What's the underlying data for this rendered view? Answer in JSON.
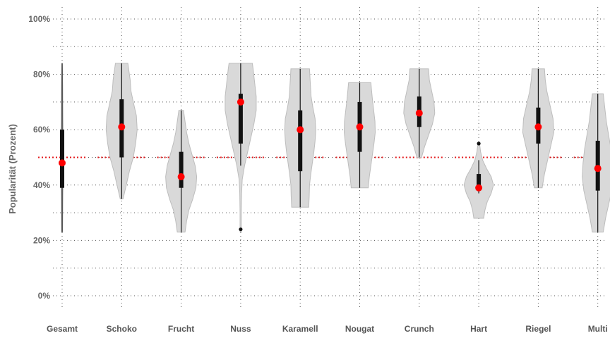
{
  "chart_data": {
    "type": "violin",
    "title": "",
    "xlabel": "",
    "ylabel": "Popularität (Prozent)",
    "ylim": [
      0,
      100
    ],
    "y_ticks": [
      0,
      20,
      40,
      60,
      80,
      100
    ],
    "y_tick_labels": [
      "0%",
      "20%",
      "40%",
      "60%",
      "80%",
      "100%"
    ],
    "grid": "dotted",
    "reference_line": {
      "y": 50,
      "color": "#e31a1c",
      "style": "dotted"
    },
    "colors": {
      "violin_fill": "#d9d9d9",
      "violin_stroke": "#bdbdbd",
      "box": "#111111",
      "median": "#ff0000",
      "reference": "#e31a1c"
    },
    "categories": [
      "Gesamt",
      "Schoko",
      "Frucht",
      "Nuss",
      "Karamell",
      "Nougat",
      "Crunch",
      "Hart",
      "Riegel",
      "Multi"
    ],
    "series": [
      {
        "category": "Gesamt",
        "min": 23,
        "q1": 39,
        "median": 48,
        "q3": 60,
        "max": 84,
        "density": [
          [
            23,
            0.03
          ],
          [
            28,
            0.04
          ],
          [
            34,
            0.05
          ],
          [
            40,
            0.07
          ],
          [
            46,
            0.09
          ],
          [
            52,
            0.1
          ],
          [
            58,
            0.08
          ],
          [
            64,
            0.06
          ],
          [
            70,
            0.05
          ],
          [
            76,
            0.04
          ],
          [
            82,
            0.02
          ],
          [
            84,
            0.01
          ]
        ]
      },
      {
        "category": "Schoko",
        "min": 35,
        "q1": 50,
        "median": 61,
        "q3": 71,
        "max": 84,
        "density": [
          [
            35,
            0.09
          ],
          [
            40,
            0.3
          ],
          [
            45,
            0.5
          ],
          [
            50,
            0.75
          ],
          [
            55,
            0.9
          ],
          [
            60,
            1.0
          ],
          [
            65,
            0.95
          ],
          [
            70,
            0.75
          ],
          [
            74,
            0.6
          ],
          [
            78,
            0.55
          ],
          [
            82,
            0.45
          ],
          [
            84,
            0.4
          ]
        ]
      },
      {
        "category": "Frucht",
        "min": 23,
        "q1": 39,
        "median": 43,
        "q3": 52,
        "max": 67,
        "density": [
          [
            23,
            0.25
          ],
          [
            27,
            0.35
          ],
          [
            31,
            0.5
          ],
          [
            35,
            0.75
          ],
          [
            39,
            0.95
          ],
          [
            43,
            1.0
          ],
          [
            47,
            0.9
          ],
          [
            51,
            0.7
          ],
          [
            55,
            0.5
          ],
          [
            59,
            0.35
          ],
          [
            63,
            0.25
          ],
          [
            67,
            0.15
          ]
        ]
      },
      {
        "category": "Nuss",
        "min": 47,
        "q1": 55,
        "median": 70,
        "q3": 73,
        "max": 84,
        "density": [
          [
            23,
            0.04
          ],
          [
            30,
            0.04
          ],
          [
            37,
            0.06
          ],
          [
            42,
            0.1
          ],
          [
            47,
            0.25
          ],
          [
            52,
            0.45
          ],
          [
            57,
            0.65
          ],
          [
            62,
            0.85
          ],
          [
            67,
            1.0
          ],
          [
            72,
            1.0
          ],
          [
            77,
            0.9
          ],
          [
            82,
            0.8
          ],
          [
            84,
            0.75
          ]
        ],
        "outliers": [
          24
        ]
      },
      {
        "category": "Karamell",
        "min": 32,
        "q1": 45,
        "median": 60,
        "q3": 67,
        "max": 82,
        "density": [
          [
            32,
            0.55
          ],
          [
            36,
            0.58
          ],
          [
            40,
            0.6
          ],
          [
            44,
            0.68
          ],
          [
            48,
            0.78
          ],
          [
            52,
            0.88
          ],
          [
            56,
            0.96
          ],
          [
            60,
            1.0
          ],
          [
            64,
            0.96
          ],
          [
            68,
            0.82
          ],
          [
            72,
            0.7
          ],
          [
            76,
            0.66
          ],
          [
            80,
            0.62
          ],
          [
            82,
            0.6
          ]
        ]
      },
      {
        "category": "Nougat",
        "min": 39,
        "q1": 52,
        "median": 61,
        "q3": 70,
        "max": 77,
        "density": [
          [
            39,
            0.55
          ],
          [
            43,
            0.62
          ],
          [
            47,
            0.72
          ],
          [
            51,
            0.82
          ],
          [
            55,
            0.92
          ],
          [
            59,
            1.0
          ],
          [
            63,
            0.98
          ],
          [
            67,
            0.9
          ],
          [
            71,
            0.82
          ],
          [
            75,
            0.75
          ],
          [
            77,
            0.72
          ]
        ]
      },
      {
        "category": "Crunch",
        "min": 50,
        "q1": 61,
        "median": 66,
        "q3": 72,
        "max": 82,
        "density": [
          [
            50,
            0.15
          ],
          [
            54,
            0.35
          ],
          [
            58,
            0.6
          ],
          [
            62,
            0.85
          ],
          [
            66,
            1.0
          ],
          [
            70,
            0.95
          ],
          [
            74,
            0.8
          ],
          [
            78,
            0.65
          ],
          [
            82,
            0.6
          ]
        ]
      },
      {
        "category": "Hart",
        "min": 37,
        "q1": 38,
        "median": 39,
        "q3": 44,
        "max": 49,
        "density": [
          [
            28,
            0.32
          ],
          [
            31,
            0.4
          ],
          [
            34,
            0.55
          ],
          [
            37,
            0.8
          ],
          [
            40,
            0.95
          ],
          [
            43,
            0.8
          ],
          [
            46,
            0.5
          ],
          [
            49,
            0.25
          ],
          [
            52,
            0.12
          ],
          [
            55,
            0.05
          ]
        ],
        "outliers": [
          55
        ]
      },
      {
        "category": "Riegel",
        "min": 39,
        "q1": 55,
        "median": 61,
        "q3": 68,
        "max": 82,
        "density": [
          [
            39,
            0.25
          ],
          [
            44,
            0.4
          ],
          [
            49,
            0.6
          ],
          [
            54,
            0.8
          ],
          [
            59,
            1.0
          ],
          [
            64,
            0.95
          ],
          [
            69,
            0.75
          ],
          [
            74,
            0.55
          ],
          [
            78,
            0.45
          ],
          [
            82,
            0.4
          ]
        ]
      },
      {
        "category": "Multi",
        "min": 23,
        "q1": 38,
        "median": 46,
        "q3": 56,
        "max": 73,
        "density": [
          [
            23,
            0.35
          ],
          [
            28,
            0.5
          ],
          [
            33,
            0.7
          ],
          [
            38,
            0.9
          ],
          [
            43,
            1.0
          ],
          [
            48,
            0.95
          ],
          [
            53,
            0.85
          ],
          [
            58,
            0.7
          ],
          [
            63,
            0.55
          ],
          [
            68,
            0.45
          ],
          [
            73,
            0.35
          ]
        ]
      }
    ]
  }
}
